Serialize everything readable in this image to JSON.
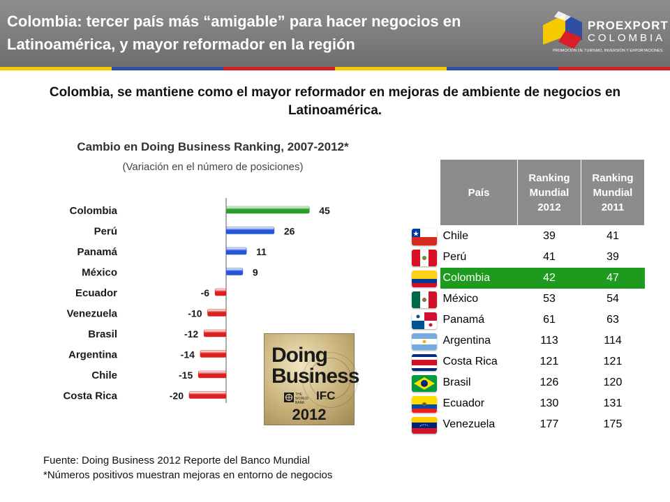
{
  "header": {
    "title": "Colombia: tercer país más “amigable” para hacer negocios en Latinoamérica, y mayor reformador en la región",
    "stripe_colors": [
      "#f7c900",
      "#2e4fa3",
      "#d91e26",
      "#f7c900",
      "#2e4fa3",
      "#d91e26"
    ]
  },
  "logo": {
    "name": "PROEXPORT",
    "country": "COLOMBIA",
    "tagline": "PROMOCIÓN DE TURISMO, INVERSIÓN Y EXPORTACIONES.",
    "colors": [
      "#f7c900",
      "#2e4fa3",
      "#d91e26"
    ]
  },
  "subtitle": "Colombia, se mantiene como el mayor reformador en mejoras de ambiente de negocios en Latinoamérica.",
  "chart_data": {
    "type": "bar",
    "orientation": "horizontal",
    "title": "Cambio en Doing Business Ranking, 2007-2012*",
    "subtitle": "(Variación en el número de posiciones)",
    "categories": [
      "Colombia",
      "Perú",
      "Panamá",
      "México",
      "Ecuador",
      "Venezuela",
      "Brasil",
      "Argentina",
      "Chile",
      "Costa Rica"
    ],
    "values": [
      45,
      26,
      11,
      9,
      -6,
      -10,
      -12,
      -14,
      -15,
      -20
    ],
    "colors": [
      "#2a9d2a",
      "#2456d6",
      "#2456d6",
      "#2456d6",
      "#dd1f1f",
      "#dd1f1f",
      "#dd1f1f",
      "#dd1f1f",
      "#dd1f1f",
      "#dd1f1f"
    ],
    "grid": false,
    "legend": "none"
  },
  "doing_business_logo": {
    "line1": "Doing",
    "line2": "Business",
    "wb": "THE WORLD BANK",
    "ifc": "IFC",
    "year": "2012"
  },
  "table": {
    "headers": [
      "País",
      "Ranking Mundial 2012",
      "Ranking Mundial 2011"
    ],
    "rows": [
      {
        "country": "Chile",
        "r2012": "39",
        "r2011": "41",
        "flag": "chile-flag-icon"
      },
      {
        "country": "Perú",
        "r2012": "41",
        "r2011": "39",
        "flag": "peru-flag-icon"
      },
      {
        "country": "Colombia",
        "r2012": "42",
        "r2011": "47",
        "flag": "colombia-flag-icon",
        "highlight": true
      },
      {
        "country": "México",
        "r2012": "53",
        "r2011": "54",
        "flag": "mexico-flag-icon"
      },
      {
        "country": "Panamá",
        "r2012": "61",
        "r2011": "63",
        "flag": "panama-flag-icon"
      },
      {
        "country": "Argentina",
        "r2012": "113",
        "r2011": "114",
        "flag": "argentina-flag-icon"
      },
      {
        "country": "Costa Rica",
        "r2012": "121",
        "r2011": "121",
        "flag": "costa-rica-flag-icon"
      },
      {
        "country": "Brasil",
        "r2012": "126",
        "r2011": "120",
        "flag": "brasil-flag-icon"
      },
      {
        "country": "Ecuador",
        "r2012": "130",
        "r2011": "131",
        "flag": "ecuador-flag-icon"
      },
      {
        "country": "Venezuela",
        "r2012": "177",
        "r2011": "175",
        "flag": "venezuela-flag-icon"
      }
    ],
    "highlight_color": "#1e9a1e",
    "header_color": "#8c8c8c"
  },
  "footnotes": {
    "source": "Fuente: Doing Business 2012 Reporte del Banco Mundial",
    "note": "*Números positivos muestran mejoras en entorno de negocios"
  }
}
